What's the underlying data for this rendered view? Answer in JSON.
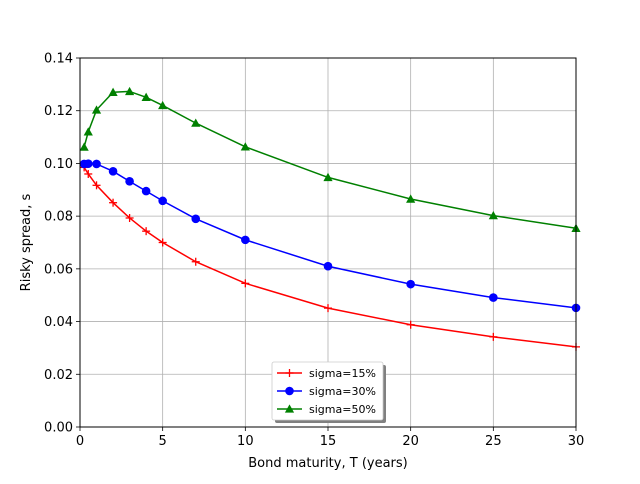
{
  "chart_data": {
    "type": "line",
    "xlabel": "Bond maturity, T (years)",
    "ylabel": "Risky spread, s",
    "xlim": [
      0,
      30
    ],
    "ylim": [
      0,
      0.14
    ],
    "xticks": [
      "0",
      "5",
      "10",
      "15",
      "20",
      "25",
      "30"
    ],
    "xtick_values": [
      0,
      5,
      10,
      15,
      20,
      25,
      30
    ],
    "yticks": [
      "0.00",
      "0.02",
      "0.04",
      "0.06",
      "0.08",
      "0.10",
      "0.12",
      "0.14"
    ],
    "ytick_values": [
      0,
      0.02,
      0.04,
      0.06,
      0.08,
      0.1,
      0.12,
      0.14
    ],
    "grid": true,
    "legend_position": "lower-center",
    "series": [
      {
        "name": "sigma=15%",
        "color": "#ff0000",
        "marker": "plus",
        "x": [
          0.25,
          0.5,
          1,
          2,
          3,
          4,
          5,
          7,
          10,
          15,
          20,
          25,
          30
        ],
        "y": [
          0.0985,
          0.096,
          0.0917,
          0.0851,
          0.0793,
          0.0743,
          0.07,
          0.0627,
          0.0545,
          0.0451,
          0.0388,
          0.0342,
          0.0304
        ]
      },
      {
        "name": "sigma=30%",
        "color": "#0000ff",
        "marker": "circle",
        "x": [
          0.25,
          0.5,
          1,
          2,
          3,
          4,
          5,
          7,
          10,
          15,
          20,
          25,
          30
        ],
        "y": [
          0.0998,
          0.0999,
          0.0998,
          0.097,
          0.0932,
          0.0895,
          0.0858,
          0.079,
          0.071,
          0.061,
          0.0542,
          0.0491,
          0.0452
        ]
      },
      {
        "name": "sigma=50%",
        "color": "#008000",
        "marker": "triangle",
        "x": [
          0.25,
          0.5,
          1,
          2,
          3,
          4,
          5,
          7,
          10,
          15,
          20,
          25,
          30
        ],
        "y": [
          0.1062,
          0.112,
          0.1203,
          0.127,
          0.1273,
          0.1251,
          0.122,
          0.1153,
          0.1063,
          0.0947,
          0.0865,
          0.0802,
          0.0754
        ]
      }
    ]
  }
}
